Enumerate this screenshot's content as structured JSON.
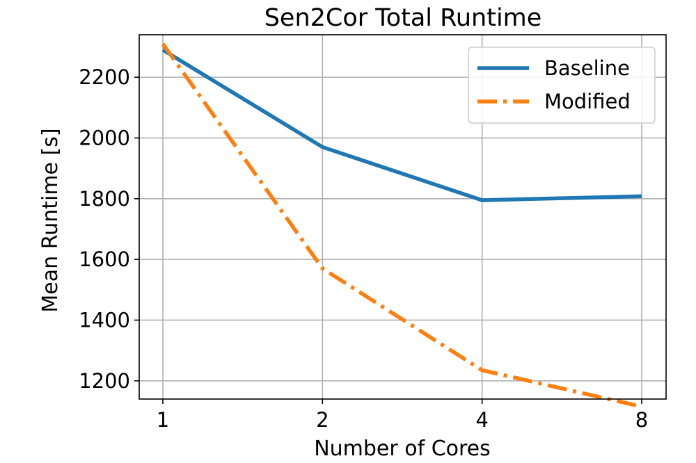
{
  "chart_data": {
    "type": "line",
    "title": "Sen2Cor Total Runtime",
    "xlabel": "Number of Cores",
    "ylabel": "Mean Runtime [s]",
    "categories": [
      "1",
      "2",
      "4",
      "8"
    ],
    "ylim": [
      1140,
      2340
    ],
    "yticks": [
      1200,
      1400,
      1600,
      1800,
      2000,
      2200
    ],
    "grid": true,
    "legend_position": "top-right",
    "series": [
      {
        "name": "Baseline",
        "values": [
          2290,
          1970,
          1795,
          1808
        ],
        "color": "#1f77b4",
        "style": "solid"
      },
      {
        "name": "Modified",
        "values": [
          2310,
          1570,
          1235,
          1115
        ],
        "color": "#ff7f0e",
        "style": "dashdot"
      }
    ]
  }
}
